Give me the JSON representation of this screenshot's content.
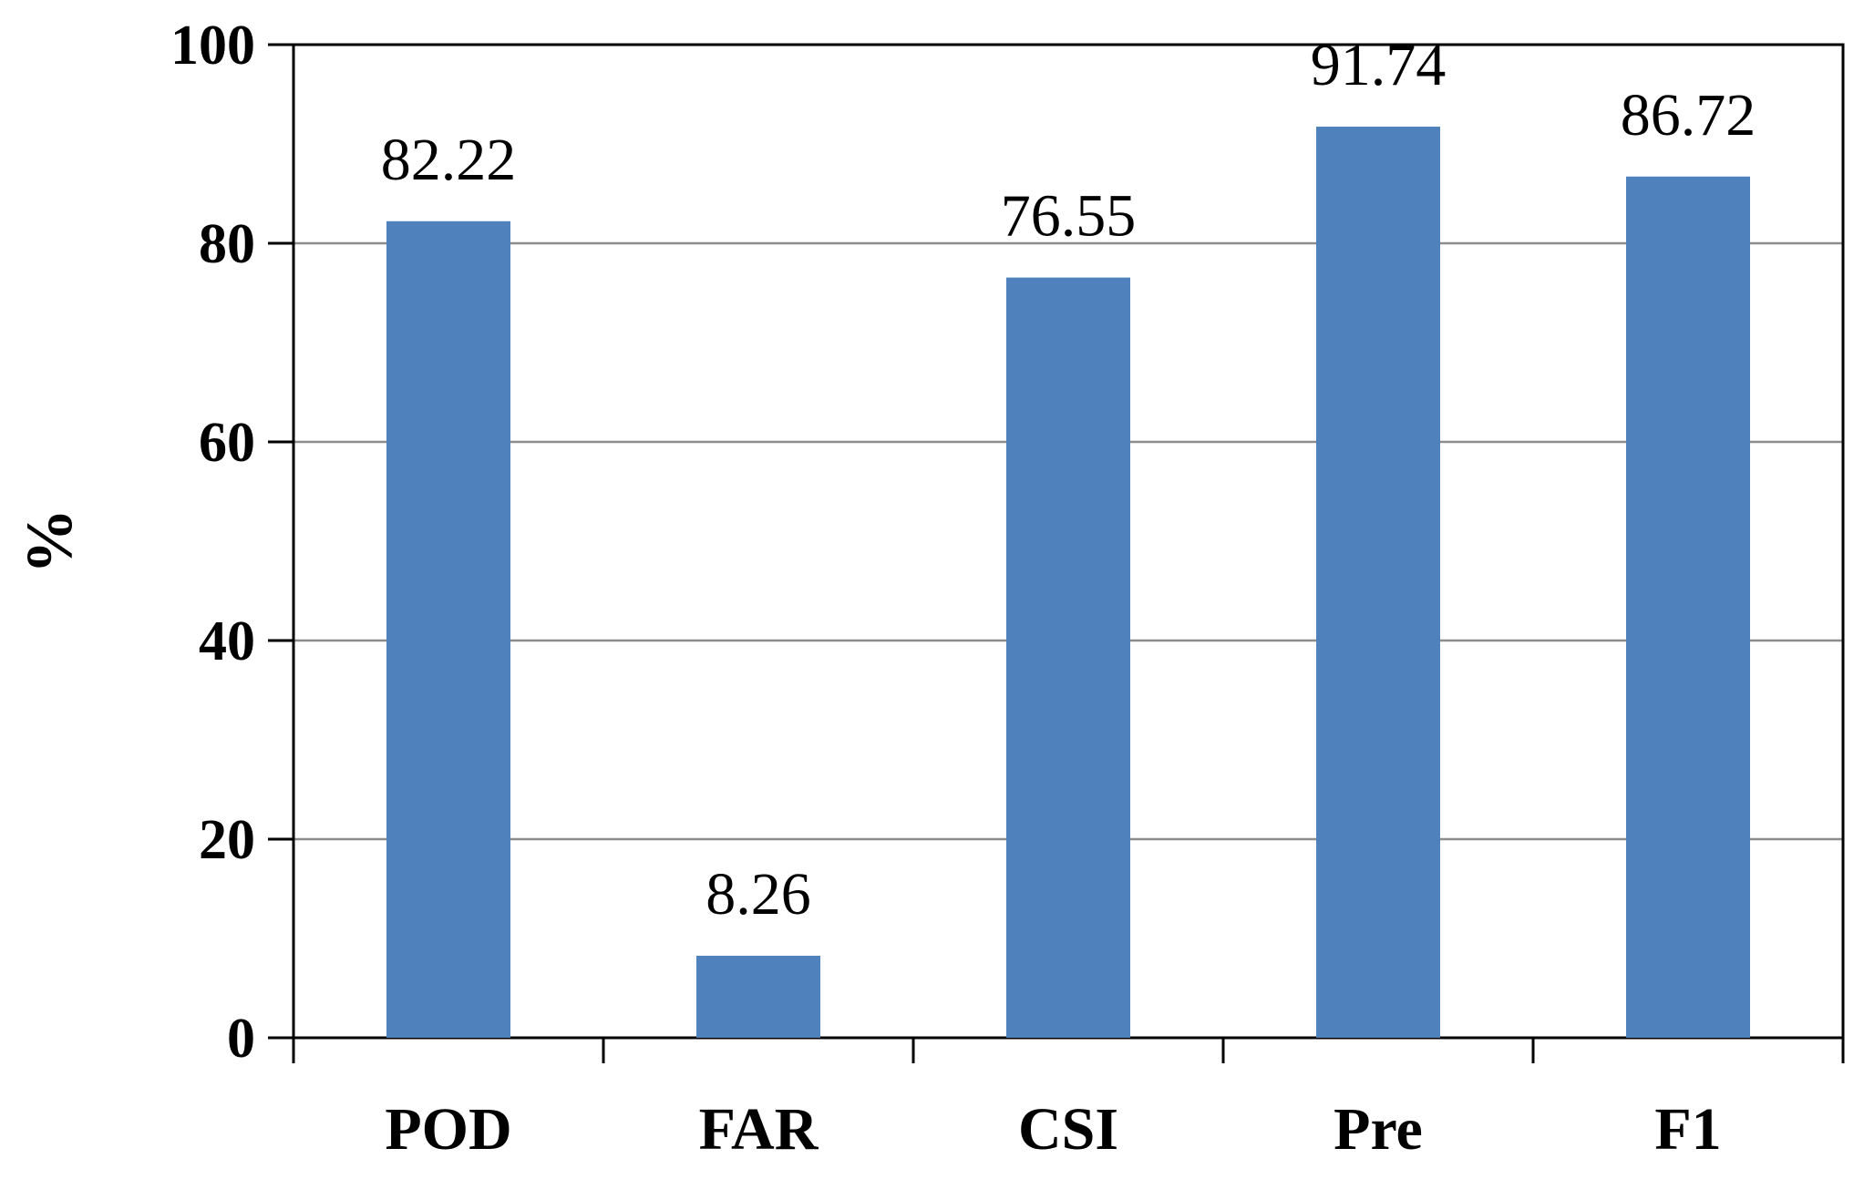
{
  "chart_data": {
    "type": "bar",
    "categories": [
      "POD",
      "FAR",
      "CSI",
      "Pre",
      "F1"
    ],
    "values": [
      82.22,
      8.26,
      76.55,
      91.74,
      86.72
    ],
    "data_labels": [
      "82.22",
      "8.26",
      "76.55",
      "91.74",
      "86.72"
    ],
    "title": "",
    "xlabel": "",
    "ylabel": "%",
    "ylim": [
      0,
      100
    ],
    "yticks": [
      0,
      20,
      40,
      60,
      80,
      100
    ],
    "grid": true,
    "bar_color": "#4f81bd",
    "grid_color": "#8c8c8c"
  }
}
